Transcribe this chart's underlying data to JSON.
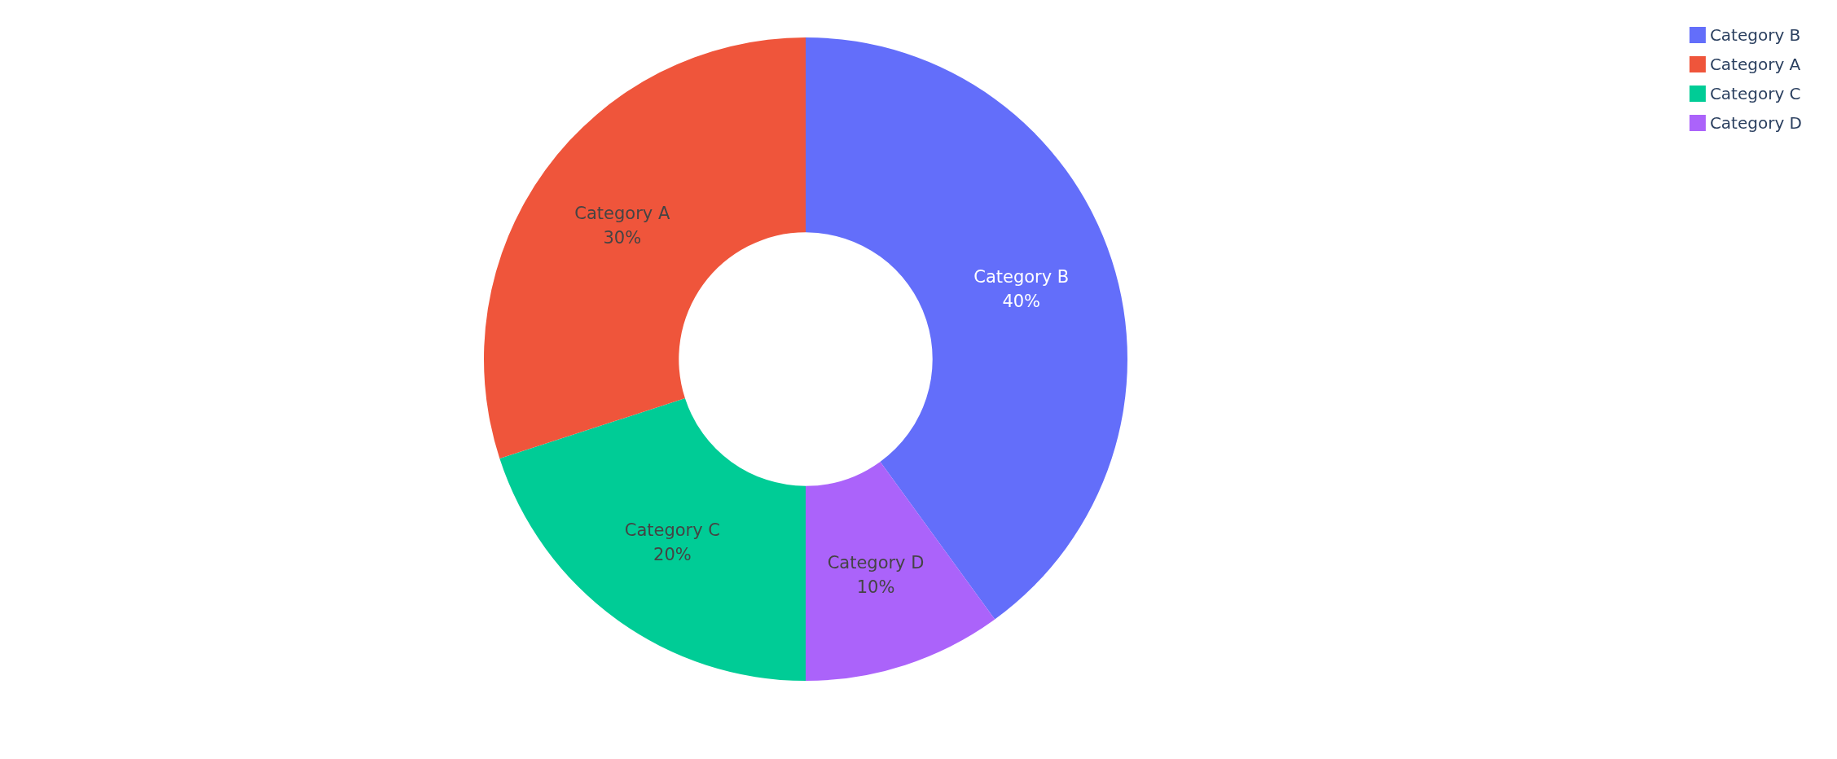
{
  "chart_data": {
    "type": "donut",
    "categories": [
      "Category B",
      "Category D",
      "Category C",
      "Category A"
    ],
    "values": [
      40,
      10,
      20,
      30
    ],
    "value_labels": [
      "40%",
      "10%",
      "20%",
      "30%"
    ],
    "colors": [
      "#636efa",
      "#ab63fa",
      "#00cc96",
      "#ef553b"
    ],
    "legend": "top right"
  }
}
